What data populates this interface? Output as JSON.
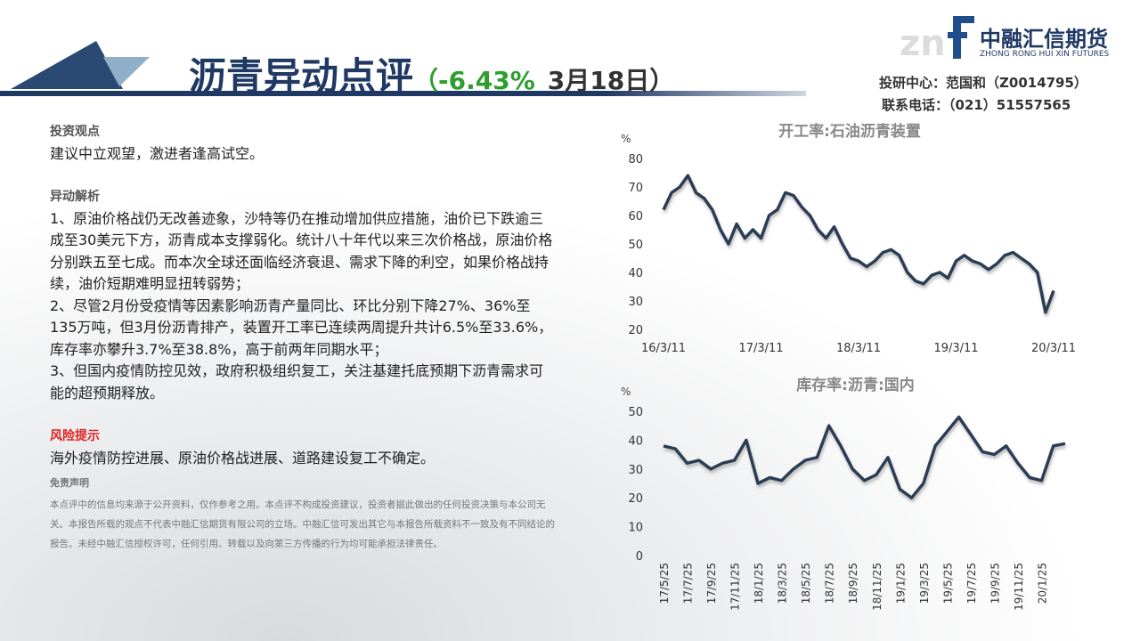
{
  "header": {
    "title": "沥青异动点评",
    "change": "（-6.43%",
    "date": "3月18日）",
    "logo_cn": "中融汇信期货",
    "logo_en": "ZHONG RONG HUI XIN FUTURES",
    "contact_1": "投研中心：范国和（Z0014795）",
    "contact_2": "联系电话：（021）51557565"
  },
  "views": {
    "heading": "投资观点",
    "body": "建议中立观望，激进者逢高试空。"
  },
  "analysis": {
    "heading": "异动解析",
    "items": [
      "1、原油价格战仍无改善迹象，沙特等仍在推动增加供应措施，油价已下跌逾三成至30美元下方，沥青成本支撑弱化。统计八十年代以来三次价格战，原油价格分别跌五至七成。而本次全球还面临经济衰退、需求下降的利空，如果价格战持续，油价短期难明显扭转弱势；",
      "2、尽管2月份受疫情等因素影响沥青产量同比、环比分别下降27%、36%至135万吨，但3月份沥青排产，装置开工率已连续两周提升共计6.5%至33.6%，库存率亦攀升3.7%至38.8%，高于前两年同期水平；",
      "3、但国内疫情防控见效，政府积极组织复工，关注基建托底预期下沥青需求可能的超预期释放。"
    ]
  },
  "risk": {
    "heading": "风险提示",
    "body": "海外疫情防控进展、原油价格战进展、道路建设复工不确定。"
  },
  "disclaimer": {
    "heading": "免责声明",
    "body": "本点评中的信息均来源于公开资料，仅作参考之用。本点评不构成投资建议，投资者据此做出的任何投资决策与本公司无关。本报告所载的观点不代表中融汇信期货有限公司的立场。中融汇信可发出其它与本报告所载资料不一致及有不同结论的报告。未经中融汇信授权许可，任何引用、转载以及向第三方传播的行为均可能承担法律责任。"
  },
  "chart_data": [
    {
      "type": "line",
      "title": "开工率:石油沥青装置",
      "y_label": "%",
      "color": "#2b3d55",
      "grid": false,
      "rotate_x": false,
      "categories": [
        "16/3/11",
        null,
        null,
        null,
        null,
        null,
        null,
        null,
        null,
        null,
        null,
        null,
        "17/3/11",
        null,
        null,
        null,
        null,
        null,
        null,
        null,
        null,
        null,
        null,
        null,
        "18/3/11",
        null,
        null,
        null,
        null,
        null,
        null,
        null,
        null,
        null,
        null,
        null,
        "19/3/11",
        null,
        null,
        null,
        null,
        null,
        null,
        null,
        null,
        null,
        null,
        null,
        "20/3/11"
      ],
      "values": [
        62,
        68,
        70,
        74,
        68,
        66,
        62,
        55,
        50,
        57,
        52,
        55,
        52,
        60,
        62,
        68,
        67,
        63,
        60,
        55,
        52,
        56,
        50,
        45,
        44,
        42,
        44,
        47,
        48,
        46,
        40,
        37,
        36,
        39,
        40,
        38,
        44,
        46,
        44,
        43,
        41,
        43,
        46,
        47,
        45,
        43,
        40,
        26,
        33.6
      ],
      "ylim": [
        20,
        80
      ],
      "yticks": [
        20,
        30,
        40,
        50,
        60,
        70,
        80
      ]
    },
    {
      "type": "line",
      "title": "库存率:沥青:国内",
      "y_label": "%",
      "color": "#2b3d55",
      "grid": false,
      "rotate_x": true,
      "categories": [
        "17/5/25",
        null,
        "17/7/25",
        null,
        "17/9/25",
        null,
        "17/11/25",
        null,
        "18/1/25",
        null,
        "18/3/25",
        null,
        "18/5/25",
        null,
        "18/7/25",
        null,
        "18/9/25",
        null,
        "18/11/25",
        null,
        "19/1/25",
        null,
        "19/3/25",
        null,
        "19/5/25",
        null,
        "19/7/25",
        null,
        "19/9/25",
        null,
        "19/11/25",
        null,
        "20/1/25",
        null,
        null
      ],
      "values": [
        38,
        37,
        32,
        33,
        30,
        32,
        33,
        40,
        25,
        27,
        26,
        30,
        33,
        34,
        45,
        38,
        30,
        26,
        28,
        34,
        23,
        20,
        25,
        38,
        43,
        48,
        42,
        36,
        35,
        38,
        32,
        27,
        26,
        38,
        38.8
      ],
      "ylim": [
        0,
        50
      ],
      "yticks": [
        0,
        10,
        20,
        30,
        40,
        50
      ]
    }
  ]
}
